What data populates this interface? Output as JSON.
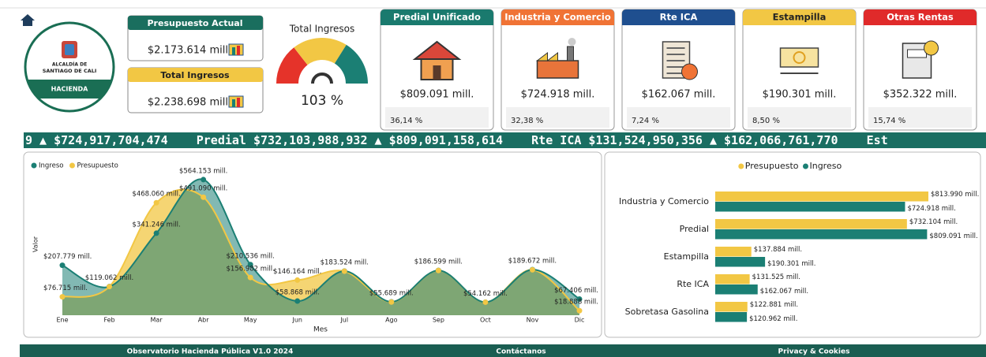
{
  "header": {
    "logo": {
      "line1": "ALCALDÍA DE",
      "line2": "SANTIAGO DE CALI",
      "unit": "HACIENDA"
    }
  },
  "kpis": [
    {
      "title": "Presupuesto Actual",
      "value": "$2.173.614 mill.",
      "color": "#1a6e5e"
    },
    {
      "title": "Total Ingresos",
      "value": "$2.238.698 mill.",
      "color": "#f2c744"
    }
  ],
  "gauge": {
    "title": "Total Ingresos",
    "value": "103 %"
  },
  "cards": [
    {
      "title": "Predial Unificado",
      "amount": "$809.091 mill.",
      "share": "36,14 %",
      "color": "#1a7a6e"
    },
    {
      "title": "Industria y Comercio",
      "amount": "$724.918 mill.",
      "share": "32,38 %",
      "color": "#f07335"
    },
    {
      "title": "Rte ICA",
      "amount": "$162.067 mill.",
      "share": "7,24 %",
      "color": "#1f4f8f"
    },
    {
      "title": "Estampilla",
      "amount": "$190.301 mill.",
      "share": "8,50 %",
      "color": "#f2c744"
    },
    {
      "title": "Otras Rentas",
      "amount": "$352.322 mill.",
      "share": "15,74 %",
      "color": "#e02a2a"
    }
  ],
  "ticker": "9 ▲ $724,917,704,474    Predial $732,103,988,932 ▲ $809,091,158,614    Rte ICA $131,524,950,356 ▲ $162,066,761,770    Est",
  "chart_data": [
    {
      "type": "area",
      "x_label": "Mes",
      "y_label": "Valor",
      "categories": [
        "Ene",
        "Feb",
        "Mar",
        "Abr",
        "May",
        "Jun",
        "Jul",
        "Ago",
        "Sep",
        "Oct",
        "Nov",
        "Dic"
      ],
      "ylim": [
        0,
        600000
      ],
      "series": [
        {
          "name": "Ingreso",
          "color": "#1b7f74",
          "values": [
            207779,
            119062,
            341246,
            564153,
            210536,
            58868,
            183524,
            55689,
            186599,
            54162,
            189672,
            67406
          ],
          "value_labels": [
            "$207.779 mill.",
            "$119.062 mill.",
            "$341.246 mill.",
            "$564.153 mill.",
            "$210.536 mill.",
            "$58.868 mill.",
            "$183.524 mill.",
            "$55.689 mill.",
            "$186.599 mill.",
            "$54.162 mill.",
            "$189.672 mill.",
            "$67.406 mill."
          ]
        },
        {
          "name": "Presupuesto",
          "color": "#f2c744",
          "values": [
            76715,
            119000,
            468060,
            491090,
            156982,
            146164,
            183000,
            55000,
            186000,
            54000,
            189000,
            18888
          ],
          "value_labels": [
            "$76.715 mill.",
            null,
            "$468.060 mill.",
            "$491.090 mill.",
            "$156.982 mill.",
            "$146.164 mill.",
            null,
            null,
            null,
            null,
            null,
            "$18.888 mill."
          ]
        }
      ]
    },
    {
      "type": "bar",
      "orientation": "horizontal",
      "categories": [
        "Industria y Comercio",
        "Predial",
        "Estampilla",
        "Rte ICA",
        "Sobretasa Gasolina"
      ],
      "xlim": [
        0,
        820000
      ],
      "series": [
        {
          "name": "Presupuesto",
          "color": "#f2c744",
          "values": [
            813990,
            732104,
            137884,
            131525,
            122881
          ],
          "value_labels": [
            "$813.990 mill.",
            "$732.104 mill.",
            "$137.884 mill.",
            "$131.525 mill.",
            "$122.881 mill."
          ]
        },
        {
          "name": "Ingreso",
          "color": "#1b7f74",
          "values": [
            724918,
            809091,
            190301,
            162067,
            120962
          ],
          "value_labels": [
            "$724.918 mill.",
            "$809.091 mill.",
            "$190.301 mill.",
            "$162.067 mill.",
            "$120.962 mill."
          ]
        }
      ]
    }
  ],
  "footer": {
    "links": [
      "Observatorio Hacienda Pública V1.0 2024",
      "Contáctanos",
      "Privacy & Cookies"
    ]
  }
}
